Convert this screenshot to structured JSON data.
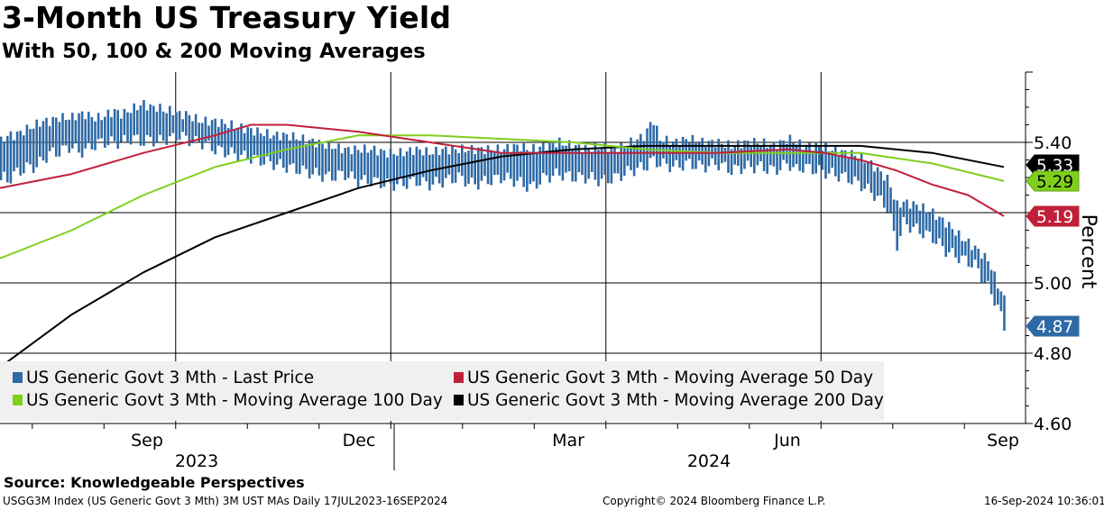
{
  "header": {
    "title": "3-Month US Treasury Yield",
    "subtitle": "With 50, 100 & 200 Moving Averages"
  },
  "source": "Source: Knowledgeable Perspectives",
  "footer": {
    "left": "USGG3M Index (US Generic Govt 3 Mth) 3M UST MAs  Daily 17JUL2023-16SEP2024",
    "center": "Copyright© 2024 Bloomberg Finance L.P.",
    "right": "16-Sep-2024 10:36:01"
  },
  "chart_data": {
    "type": "line",
    "title": "3-Month US Treasury Yield",
    "subtitle": "With 50, 100 & 200 Moving Averages",
    "ylabel": "Percent",
    "ylim": [
      4.6,
      5.6
    ],
    "yticks": [
      "5.40",
      "5.00",
      "4.80",
      "4.60"
    ],
    "ytick_values": [
      5.4,
      5.0,
      4.8,
      4.6
    ],
    "gridlines_at": [
      5.4,
      5.2,
      5.0,
      4.8
    ],
    "x_range_label": "17JUL2023-16SEP2024",
    "xticks": [
      "Sep",
      "Dec",
      "Mar",
      "Jun",
      "Sep"
    ],
    "year_labels": [
      "2023",
      "2024"
    ],
    "legend_position": "bottom-left",
    "colors": {
      "last_price": "#2e6aa6",
      "ma50": "#c0203a",
      "ma100": "#7fcf1d",
      "ma200": "#000000"
    },
    "last_value_labels": [
      {
        "series": "ma200",
        "text": "5.33",
        "value": 5.33,
        "bg": "#000000",
        "fg": "#ffffff"
      },
      {
        "series": "ma100",
        "text": "5.29",
        "value": 5.29,
        "bg": "#7fcf1d",
        "fg": "#000000"
      },
      {
        "series": "ma50",
        "text": "5.19",
        "value": 5.19,
        "bg": "#c0203a",
        "fg": "#ffffff"
      },
      {
        "series": "last_price",
        "text": "4.87",
        "value": 4.87,
        "bg": "#2e6aa6",
        "fg": "#ffffff"
      }
    ],
    "series": [
      {
        "id": "last_price",
        "name": "US Generic Govt 3 Mth - Last Price",
        "style": "hl-bars",
        "points": [
          {
            "m": 0.0,
            "lo": 5.29,
            "hi": 5.4
          },
          {
            "m": 0.05,
            "lo": 5.3,
            "hi": 5.41
          },
          {
            "m": 0.1,
            "lo": 5.29,
            "hi": 5.42
          },
          {
            "m": 0.2,
            "lo": 5.31,
            "hi": 5.42
          },
          {
            "m": 0.3,
            "lo": 5.32,
            "hi": 5.43
          },
          {
            "m": 0.4,
            "lo": 5.33,
            "hi": 5.44
          },
          {
            "m": 0.5,
            "lo": 5.33,
            "hi": 5.45
          },
          {
            "m": 0.6,
            "lo": 5.35,
            "hi": 5.46
          },
          {
            "m": 0.7,
            "lo": 5.37,
            "hi": 5.46
          },
          {
            "m": 0.8,
            "lo": 5.37,
            "hi": 5.47
          },
          {
            "m": 0.9,
            "lo": 5.38,
            "hi": 5.47
          },
          {
            "m": 1.0,
            "lo": 5.39,
            "hi": 5.47
          },
          {
            "m": 1.1,
            "lo": 5.37,
            "hi": 5.48
          },
          {
            "m": 1.2,
            "lo": 5.38,
            "hi": 5.48
          },
          {
            "m": 1.3,
            "lo": 5.39,
            "hi": 5.47
          },
          {
            "m": 1.4,
            "lo": 5.4,
            "hi": 5.47
          },
          {
            "m": 1.5,
            "lo": 5.4,
            "hi": 5.48
          },
          {
            "m": 1.6,
            "lo": 5.4,
            "hi": 5.49
          },
          {
            "m": 1.7,
            "lo": 5.4,
            "hi": 5.48
          },
          {
            "m": 1.8,
            "lo": 5.41,
            "hi": 5.49
          },
          {
            "m": 1.9,
            "lo": 5.41,
            "hi": 5.5
          },
          {
            "m": 2.0,
            "lo": 5.4,
            "hi": 5.51
          },
          {
            "m": 2.1,
            "lo": 5.41,
            "hi": 5.5
          },
          {
            "m": 2.2,
            "lo": 5.4,
            "hi": 5.5
          },
          {
            "m": 2.3,
            "lo": 5.41,
            "hi": 5.49
          },
          {
            "m": 2.4,
            "lo": 5.41,
            "hi": 5.49
          },
          {
            "m": 2.5,
            "lo": 5.42,
            "hi": 5.48
          },
          {
            "m": 2.6,
            "lo": 5.41,
            "hi": 5.48
          },
          {
            "m": 2.7,
            "lo": 5.4,
            "hi": 5.47
          },
          {
            "m": 2.8,
            "lo": 5.4,
            "hi": 5.46
          },
          {
            "m": 2.9,
            "lo": 5.39,
            "hi": 5.46
          },
          {
            "m": 3.0,
            "lo": 5.38,
            "hi": 5.46
          },
          {
            "m": 3.2,
            "lo": 5.37,
            "hi": 5.45
          },
          {
            "m": 3.4,
            "lo": 5.36,
            "hi": 5.44
          },
          {
            "m": 3.6,
            "lo": 5.35,
            "hi": 5.43
          },
          {
            "m": 3.8,
            "lo": 5.34,
            "hi": 5.42
          },
          {
            "m": 4.0,
            "lo": 5.33,
            "hi": 5.42
          },
          {
            "m": 4.2,
            "lo": 5.32,
            "hi": 5.41
          },
          {
            "m": 4.4,
            "lo": 5.31,
            "hi": 5.4
          },
          {
            "m": 4.6,
            "lo": 5.3,
            "hi": 5.39
          },
          {
            "m": 4.8,
            "lo": 5.31,
            "hi": 5.38
          },
          {
            "m": 5.0,
            "lo": 5.29,
            "hi": 5.38
          },
          {
            "m": 5.2,
            "lo": 5.29,
            "hi": 5.38
          },
          {
            "m": 5.4,
            "lo": 5.28,
            "hi": 5.37
          },
          {
            "m": 5.6,
            "lo": 5.28,
            "hi": 5.37
          },
          {
            "m": 5.8,
            "lo": 5.29,
            "hi": 5.38
          },
          {
            "m": 6.0,
            "lo": 5.28,
            "hi": 5.37
          },
          {
            "m": 6.2,
            "lo": 5.29,
            "hi": 5.38
          },
          {
            "m": 6.4,
            "lo": 5.3,
            "hi": 5.38
          },
          {
            "m": 6.6,
            "lo": 5.28,
            "hi": 5.38
          },
          {
            "m": 6.8,
            "lo": 5.29,
            "hi": 5.38
          },
          {
            "m": 7.0,
            "lo": 5.3,
            "hi": 5.38
          },
          {
            "m": 7.2,
            "lo": 5.29,
            "hi": 5.39
          },
          {
            "m": 7.4,
            "lo": 5.27,
            "hi": 5.38
          },
          {
            "m": 7.6,
            "lo": 5.3,
            "hi": 5.39
          },
          {
            "m": 7.8,
            "lo": 5.31,
            "hi": 5.4
          },
          {
            "m": 8.0,
            "lo": 5.3,
            "hi": 5.39
          },
          {
            "m": 8.2,
            "lo": 5.3,
            "hi": 5.38
          },
          {
            "m": 8.4,
            "lo": 5.29,
            "hi": 5.39
          },
          {
            "m": 8.6,
            "lo": 5.3,
            "hi": 5.38
          },
          {
            "m": 8.8,
            "lo": 5.32,
            "hi": 5.4
          },
          {
            "m": 9.0,
            "lo": 5.33,
            "hi": 5.42
          },
          {
            "m": 9.1,
            "lo": 5.35,
            "hi": 5.47
          },
          {
            "m": 9.2,
            "lo": 5.34,
            "hi": 5.41
          },
          {
            "m": 9.4,
            "lo": 5.33,
            "hi": 5.4
          },
          {
            "m": 9.6,
            "lo": 5.34,
            "hi": 5.41
          },
          {
            "m": 9.8,
            "lo": 5.33,
            "hi": 5.4
          },
          {
            "m": 10.0,
            "lo": 5.34,
            "hi": 5.4
          },
          {
            "m": 10.2,
            "lo": 5.32,
            "hi": 5.39
          },
          {
            "m": 10.4,
            "lo": 5.33,
            "hi": 5.4
          },
          {
            "m": 10.6,
            "lo": 5.33,
            "hi": 5.4
          },
          {
            "m": 10.8,
            "lo": 5.32,
            "hi": 5.39
          },
          {
            "m": 11.0,
            "lo": 5.34,
            "hi": 5.41
          },
          {
            "m": 11.1,
            "lo": 5.32,
            "hi": 5.4
          },
          {
            "m": 11.2,
            "lo": 5.33,
            "hi": 5.39
          },
          {
            "m": 11.4,
            "lo": 5.32,
            "hi": 5.39
          },
          {
            "m": 11.6,
            "lo": 5.31,
            "hi": 5.38
          },
          {
            "m": 11.8,
            "lo": 5.3,
            "hi": 5.37
          },
          {
            "m": 12.0,
            "lo": 5.28,
            "hi": 5.36
          },
          {
            "m": 12.2,
            "lo": 5.25,
            "hi": 5.33
          },
          {
            "m": 12.4,
            "lo": 5.21,
            "hi": 5.29
          },
          {
            "m": 12.5,
            "lo": 5.1,
            "hi": 5.22
          },
          {
            "m": 12.6,
            "lo": 5.17,
            "hi": 5.23
          },
          {
            "m": 12.8,
            "lo": 5.15,
            "hi": 5.22
          },
          {
            "m": 13.0,
            "lo": 5.13,
            "hi": 5.2
          },
          {
            "m": 13.2,
            "lo": 5.09,
            "hi": 5.17
          },
          {
            "m": 13.4,
            "lo": 5.07,
            "hi": 5.13
          },
          {
            "m": 13.6,
            "lo": 5.05,
            "hi": 5.1
          },
          {
            "m": 13.8,
            "lo": 4.98,
            "hi": 5.06
          },
          {
            "m": 13.9,
            "lo": 4.94,
            "hi": 5.0
          },
          {
            "m": 14.0,
            "lo": 4.88,
            "hi": 4.96
          },
          {
            "m": 14.05,
            "lo": 4.83,
            "hi": 4.9
          }
        ]
      },
      {
        "id": "ma50",
        "name": "US Generic Govt 3 Mth - Moving Average 50 Day",
        "style": "line",
        "points": [
          [
            0,
            5.27
          ],
          [
            1,
            5.31
          ],
          [
            2,
            5.37
          ],
          [
            3,
            5.42
          ],
          [
            3.5,
            5.45
          ],
          [
            4,
            5.45
          ],
          [
            5,
            5.43
          ],
          [
            6,
            5.4
          ],
          [
            7,
            5.37
          ],
          [
            8,
            5.37
          ],
          [
            9,
            5.37
          ],
          [
            10,
            5.37
          ],
          [
            11,
            5.38
          ],
          [
            11.5,
            5.37
          ],
          [
            12,
            5.35
          ],
          [
            12.5,
            5.32
          ],
          [
            13,
            5.28
          ],
          [
            13.5,
            5.25
          ],
          [
            14,
            5.19
          ]
        ]
      },
      {
        "id": "ma100",
        "name": "US Generic Govt 3 Mth - Moving Average 100 Day",
        "style": "line",
        "points": [
          [
            0,
            5.07
          ],
          [
            1,
            5.15
          ],
          [
            2,
            5.25
          ],
          [
            3,
            5.33
          ],
          [
            4,
            5.38
          ],
          [
            5,
            5.42
          ],
          [
            6,
            5.42
          ],
          [
            7,
            5.41
          ],
          [
            8,
            5.4
          ],
          [
            9,
            5.38
          ],
          [
            10,
            5.37
          ],
          [
            11,
            5.37
          ],
          [
            12,
            5.37
          ],
          [
            13,
            5.34
          ],
          [
            14,
            5.29
          ]
        ]
      },
      {
        "id": "ma200",
        "name": "US Generic Govt 3 Mth - Moving Average 200 Day",
        "style": "line",
        "points": [
          [
            0,
            4.76
          ],
          [
            1,
            4.91
          ],
          [
            2,
            5.03
          ],
          [
            3,
            5.13
          ],
          [
            4,
            5.2
          ],
          [
            5,
            5.27
          ],
          [
            6,
            5.32
          ],
          [
            7,
            5.36
          ],
          [
            8,
            5.38
          ],
          [
            9,
            5.39
          ],
          [
            10,
            5.39
          ],
          [
            11,
            5.39
          ],
          [
            12,
            5.39
          ],
          [
            13,
            5.37
          ],
          [
            14,
            5.33
          ]
        ]
      }
    ]
  }
}
